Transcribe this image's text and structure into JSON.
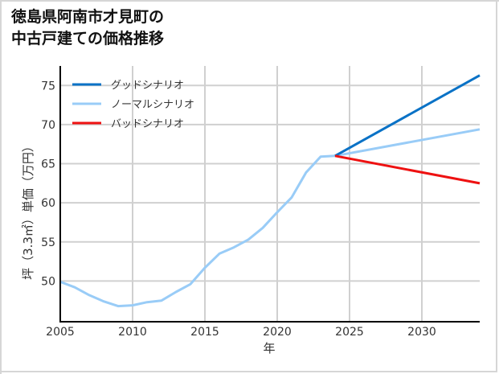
{
  "title_line1": "徳島県阿南市才見町の",
  "title_line2": "中古戸建ての価格推移",
  "chart_data": {
    "type": "line",
    "title": "徳島県阿南市才見町の中古戸建ての価格推移",
    "xlabel": "年",
    "ylabel": "坪（3.3㎡）単価（万円）",
    "xlim": [
      2005,
      2034
    ],
    "ylim": [
      44.8,
      77.5
    ],
    "xticks": [
      2005,
      2010,
      2015,
      2020,
      2025,
      2030
    ],
    "yticks": [
      50,
      55,
      60,
      65,
      70,
      75
    ],
    "grid": true,
    "legend_position": "upper left",
    "series": [
      {
        "name": "グッドシナリオ",
        "color": "#0a72c6",
        "x": [
          2024,
          2034
        ],
        "values": [
          66.0,
          76.3
        ]
      },
      {
        "name": "ノーマルシナリオ",
        "color": "#99ccf7",
        "x": [
          2005,
          2006,
          2007,
          2008,
          2009,
          2010,
          2011,
          2012,
          2013,
          2014,
          2015,
          2016,
          2017,
          2018,
          2019,
          2020,
          2021,
          2022,
          2023,
          2024,
          2034
        ],
        "values": [
          49.9,
          49.2,
          48.2,
          47.4,
          46.8,
          46.9,
          47.3,
          47.5,
          48.6,
          49.6,
          51.7,
          53.5,
          54.3,
          55.3,
          56.8,
          58.8,
          60.7,
          63.9,
          65.9,
          66.0,
          69.4
        ]
      },
      {
        "name": "バッドシナリオ",
        "color": "#ee1111",
        "x": [
          2024,
          2034
        ],
        "values": [
          66.0,
          62.5
        ]
      }
    ]
  }
}
